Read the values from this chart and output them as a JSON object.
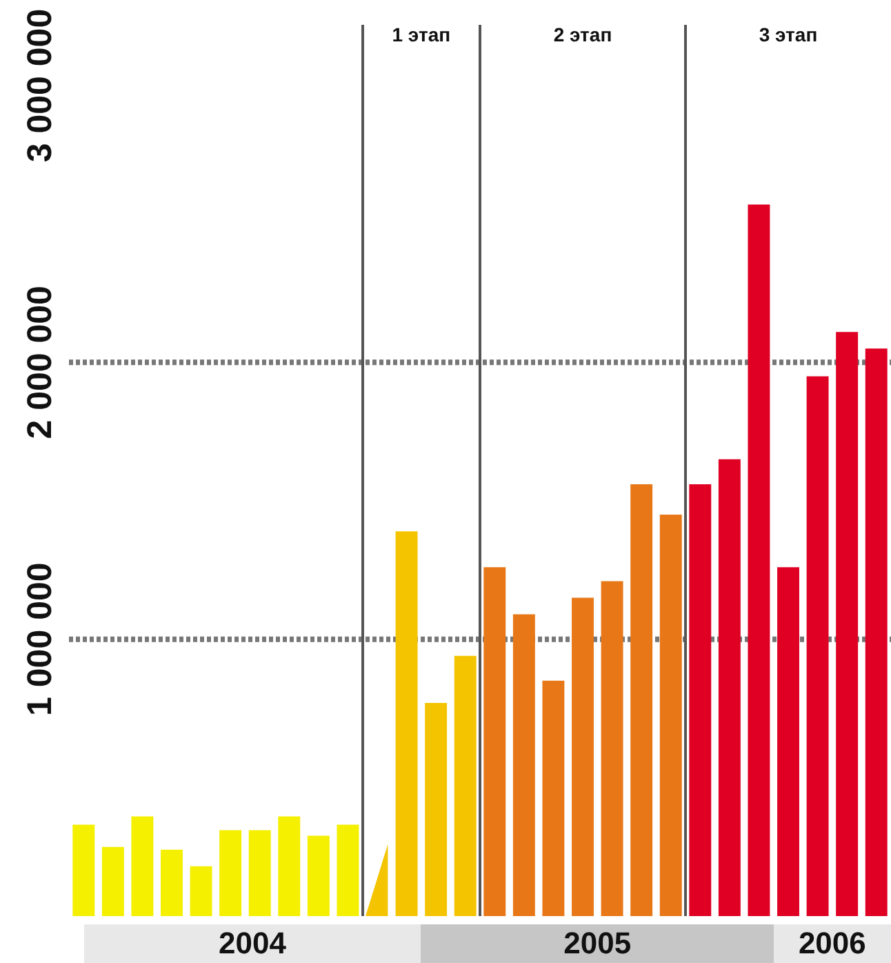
{
  "chart_data": {
    "type": "bar",
    "categories": [
      null,
      null,
      null,
      null,
      null,
      null,
      null,
      null,
      null,
      null,
      null,
      null,
      null,
      null,
      null,
      null,
      null,
      null,
      null,
      null,
      null,
      null,
      null,
      null,
      null,
      null,
      null,
      null
    ],
    "values": [
      330000,
      250000,
      360000,
      240000,
      180000,
      310000,
      310000,
      360000,
      290000,
      330000,
      null,
      1390000,
      770000,
      940000,
      1260000,
      1090000,
      850000,
      1150000,
      1210000,
      1560000,
      1450000,
      1560000,
      1650000,
      2570000,
      1260000,
      1950000,
      2110000,
      2050000
    ],
    "colors": [
      "#f5ef00",
      "#f5ef00",
      "#f5ef00",
      "#f5ef00",
      "#f5ef00",
      "#f5ef00",
      "#f5ef00",
      "#f5ef00",
      "#f5ef00",
      "#f5ef00",
      "#f4c400",
      "#f4c400",
      "#f4c400",
      "#f4c400",
      "#e87817",
      "#e87817",
      "#e87817",
      "#e87817",
      "#e87817",
      "#e87817",
      "#e87817",
      "#df0024",
      "#df0024",
      "#df0024",
      "#df0024",
      "#df0024",
      "#df0024",
      "#df0024"
    ],
    "ylim": [
      0,
      3000000
    ],
    "yticks": [
      {
        "value": 1000000,
        "label": "1 000 000"
      },
      {
        "value": 2000000,
        "label": "2 000 000"
      },
      {
        "value": 3000000,
        "label": "3 000 000"
      }
    ],
    "tick_labels": "y",
    "ref_lines": [
      {
        "axis": "y",
        "value": 1000000,
        "color": "#777777",
        "line_style": "dotted"
      },
      {
        "axis": "y",
        "value": 2000000,
        "color": "#777777",
        "line_style": "dotted"
      }
    ],
    "annotations": [
      "1 этап",
      "2 этап",
      "3 этап",
      "2004",
      "2005",
      "2006"
    ],
    "legend": false
  }
}
